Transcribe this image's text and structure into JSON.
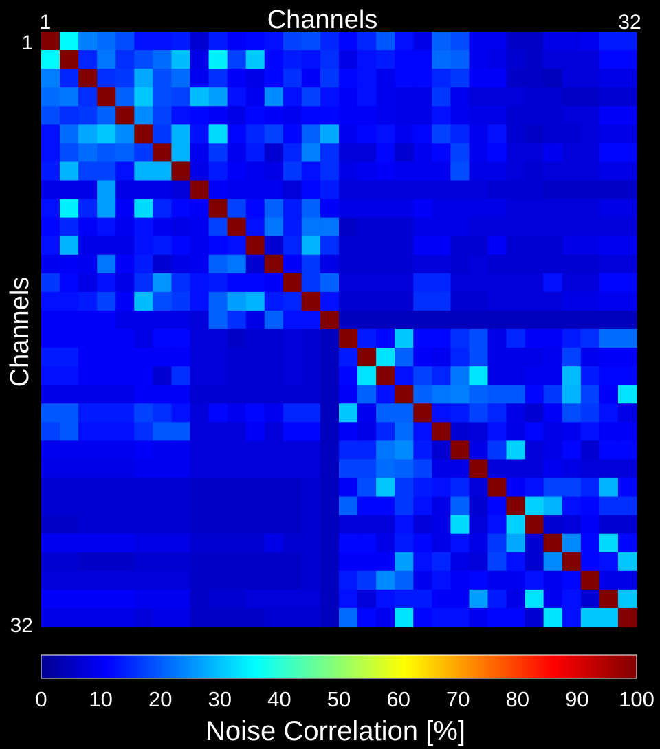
{
  "chart_data": {
    "type": "heatmap",
    "title": "Channels",
    "xlabel": "Channels",
    "ylabel": "Channels",
    "x_tick_labels": [
      "1",
      "32"
    ],
    "y_tick_labels": [
      "1",
      "32"
    ],
    "colorbar": {
      "label": "Noise Correlation [%]",
      "range": [
        0,
        100
      ],
      "ticks": [
        "0",
        "10",
        "20",
        "30",
        "40",
        "50",
        "60",
        "70",
        "80",
        "90",
        "100"
      ],
      "colormap": "jet"
    },
    "n_channels": 32,
    "values": [
      [
        100,
        37,
        25,
        23,
        20,
        14,
        14,
        15,
        8,
        15,
        12,
        13,
        14,
        19,
        20,
        16,
        13,
        16,
        21,
        14,
        10,
        22,
        20,
        11,
        11,
        7,
        7,
        10,
        10,
        11,
        15,
        15
      ],
      [
        37,
        100,
        16,
        24,
        17,
        20,
        23,
        31,
        10,
        36,
        19,
        32,
        13,
        15,
        14,
        17,
        10,
        14,
        15,
        13,
        13,
        23,
        22,
        11,
        10,
        8,
        7,
        9,
        9,
        9,
        13,
        13
      ],
      [
        25,
        16,
        100,
        17,
        18,
        29,
        20,
        23,
        11,
        17,
        12,
        10,
        13,
        17,
        12,
        18,
        13,
        14,
        11,
        13,
        13,
        16,
        18,
        12,
        12,
        7,
        7,
        6,
        9,
        9,
        10,
        10
      ],
      [
        23,
        24,
        17,
        100,
        22,
        32,
        20,
        19,
        31,
        28,
        14,
        11,
        26,
        14,
        19,
        14,
        12,
        14,
        11,
        10,
        10,
        18,
        11,
        9,
        9,
        9,
        8,
        8,
        7,
        7,
        8,
        8
      ],
      [
        20,
        17,
        18,
        22,
        100,
        26,
        19,
        14,
        13,
        12,
        10,
        13,
        12,
        11,
        13,
        13,
        12,
        12,
        11,
        10,
        10,
        14,
        11,
        10,
        10,
        8,
        8,
        8,
        9,
        9,
        12,
        12
      ],
      [
        14,
        23,
        29,
        32,
        26,
        100,
        18,
        30,
        14,
        34,
        13,
        16,
        19,
        13,
        22,
        29,
        11,
        13,
        14,
        11,
        13,
        19,
        16,
        11,
        14,
        8,
        7,
        8,
        8,
        9,
        10,
        10
      ],
      [
        14,
        20,
        23,
        21,
        22,
        18,
        100,
        30,
        11,
        18,
        11,
        15,
        8,
        16,
        25,
        17,
        9,
        9,
        13,
        8,
        11,
        13,
        19,
        11,
        13,
        9,
        9,
        11,
        9,
        9,
        13,
        13
      ],
      [
        15,
        30,
        19,
        19,
        14,
        30,
        30,
        100,
        10,
        15,
        12,
        11,
        10,
        18,
        14,
        17,
        10,
        11,
        12,
        11,
        11,
        11,
        20,
        10,
        10,
        9,
        8,
        9,
        9,
        9,
        10,
        10
      ],
      [
        10,
        10,
        10,
        28,
        10,
        10,
        10,
        9,
        100,
        12,
        11,
        11,
        11,
        9,
        13,
        15,
        9,
        9,
        9,
        9,
        9,
        9,
        9,
        9,
        8,
        8,
        8,
        7,
        7,
        7,
        7,
        7
      ],
      [
        14,
        36,
        16,
        28,
        12,
        34,
        16,
        13,
        12,
        100,
        19,
        13,
        22,
        15,
        22,
        12,
        10,
        10,
        10,
        10,
        12,
        10,
        10,
        10,
        10,
        9,
        9,
        9,
        9,
        9,
        10,
        10
      ],
      [
        13,
        16,
        12,
        14,
        11,
        14,
        11,
        10,
        11,
        19,
        100,
        14,
        24,
        15,
        24,
        24,
        7,
        8,
        8,
        8,
        10,
        10,
        10,
        9,
        9,
        9,
        9,
        9,
        9,
        9,
        9,
        9
      ],
      [
        14,
        30,
        10,
        10,
        10,
        14,
        15,
        13,
        11,
        13,
        14,
        100,
        8,
        16,
        30,
        17,
        8,
        8,
        8,
        8,
        12,
        12,
        8,
        8,
        12,
        8,
        8,
        8,
        10,
        10,
        11,
        11
      ],
      [
        11,
        12,
        11,
        24,
        12,
        15,
        8,
        10,
        11,
        22,
        24,
        8,
        100,
        12,
        18,
        10,
        8,
        8,
        8,
        8,
        9,
        9,
        8,
        9,
        8,
        8,
        8,
        8,
        8,
        8,
        9,
        9
      ],
      [
        18,
        13,
        10,
        14,
        10,
        17,
        27,
        17,
        14,
        15,
        13,
        13,
        12,
        100,
        18,
        22,
        9,
        9,
        9,
        9,
        16,
        16,
        9,
        9,
        9,
        9,
        9,
        14,
        9,
        9,
        13,
        13
      ],
      [
        14,
        14,
        15,
        19,
        12,
        31,
        20,
        18,
        14,
        22,
        28,
        30,
        15,
        16,
        100,
        14,
        8,
        8,
        8,
        8,
        17,
        17,
        8,
        8,
        9,
        9,
        9,
        9,
        10,
        10,
        11,
        11
      ],
      [
        12,
        12,
        12,
        12,
        10,
        10,
        10,
        10,
        9,
        22,
        17,
        10,
        22,
        14,
        14,
        100,
        6,
        6,
        6,
        6,
        6,
        6,
        6,
        6,
        6,
        6,
        6,
        6,
        6,
        6,
        6,
        6
      ],
      [
        12,
        12,
        12,
        12,
        12,
        10,
        13,
        13,
        9,
        9,
        7,
        8,
        8,
        9,
        8,
        6,
        100,
        15,
        13,
        32,
        13,
        13,
        17,
        20,
        10,
        16,
        12,
        12,
        15,
        17,
        23,
        23
      ],
      [
        15,
        15,
        12,
        12,
        12,
        12,
        12,
        12,
        9,
        9,
        8,
        8,
        8,
        9,
        8,
        6,
        15,
        100,
        35,
        22,
        12,
        11,
        16,
        20,
        10,
        10,
        10,
        11,
        19,
        11,
        12,
        12
      ],
      [
        14,
        14,
        12,
        12,
        12,
        12,
        8,
        17,
        9,
        9,
        8,
        8,
        8,
        9,
        8,
        6,
        13,
        35,
        100,
        14,
        19,
        16,
        24,
        35,
        10,
        10,
        11,
        11,
        31,
        15,
        13,
        13
      ],
      [
        10,
        10,
        10,
        10,
        10,
        12,
        12,
        12,
        8,
        8,
        8,
        8,
        8,
        8,
        8,
        6,
        12,
        22,
        14,
        100,
        22,
        24,
        25,
        22,
        21,
        21,
        13,
        18,
        30,
        19,
        12,
        35
      ],
      [
        21,
        21,
        15,
        15,
        15,
        19,
        17,
        14,
        9,
        13,
        11,
        13,
        11,
        16,
        16,
        6,
        32,
        11,
        22,
        22,
        100,
        14,
        15,
        19,
        16,
        10,
        8,
        12,
        20,
        18,
        14,
        10
      ],
      [
        19,
        21,
        14,
        14,
        14,
        17,
        21,
        21,
        9,
        9,
        9,
        12,
        9,
        13,
        13,
        6,
        12,
        10,
        16,
        23,
        14,
        100,
        8,
        9,
        14,
        10,
        13,
        10,
        11,
        14,
        12,
        12
      ],
      [
        11,
        11,
        11,
        11,
        11,
        12,
        11,
        11,
        9,
        9,
        9,
        9,
        9,
        9,
        9,
        6,
        16,
        16,
        24,
        26,
        15,
        8,
        100,
        10,
        18,
        33,
        9,
        10,
        13,
        8,
        13,
        13
      ],
      [
        10,
        10,
        10,
        10,
        10,
        11,
        11,
        11,
        9,
        9,
        9,
        9,
        9,
        9,
        9,
        6,
        19,
        19,
        23,
        22,
        19,
        10,
        10,
        100,
        9,
        9,
        9,
        11,
        10,
        9,
        9,
        9
      ],
      [
        8,
        8,
        8,
        8,
        8,
        8,
        8,
        8,
        7,
        7,
        7,
        7,
        7,
        7,
        8,
        6,
        12,
        20,
        32,
        18,
        15,
        14,
        16,
        9,
        100,
        12,
        14,
        19,
        19,
        16,
        30,
        13
      ],
      [
        8,
        8,
        8,
        8,
        8,
        8,
        8,
        8,
        7,
        7,
        7,
        7,
        7,
        7,
        8,
        6,
        22,
        13,
        13,
        18,
        14,
        10,
        22,
        8,
        13,
        100,
        33,
        30,
        14,
        13,
        17,
        17
      ],
      [
        7,
        7,
        8,
        8,
        8,
        8,
        8,
        8,
        7,
        7,
        7,
        7,
        7,
        7,
        8,
        6,
        9,
        9,
        9,
        14,
        9,
        10,
        34,
        9,
        14,
        33,
        100,
        8,
        9,
        12,
        8,
        8
      ],
      [
        11,
        11,
        11,
        11,
        11,
        10,
        10,
        10,
        8,
        8,
        8,
        8,
        10,
        8,
        8,
        6,
        13,
        13,
        10,
        15,
        13,
        10,
        14,
        10,
        18,
        29,
        8,
        100,
        26,
        13,
        34,
        13
      ],
      [
        8,
        8,
        7,
        7,
        7,
        8,
        8,
        8,
        7,
        7,
        7,
        7,
        7,
        7,
        8,
        6,
        12,
        12,
        12,
        28,
        14,
        16,
        10,
        9,
        19,
        14,
        8,
        26,
        100,
        13,
        14,
        32
      ],
      [
        9,
        9,
        9,
        9,
        9,
        9,
        9,
        9,
        7,
        7,
        7,
        7,
        7,
        7,
        8,
        6,
        15,
        18,
        26,
        22,
        11,
        14,
        12,
        13,
        11,
        11,
        14,
        11,
        13,
        100,
        10,
        10
      ],
      [
        12,
        12,
        12,
        12,
        12,
        11,
        11,
        11,
        7,
        8,
        8,
        9,
        9,
        9,
        9,
        6,
        14,
        9,
        14,
        15,
        15,
        12,
        12,
        28,
        15,
        10,
        35,
        11,
        14,
        8,
        100,
        32
      ],
      [
        10,
        10,
        10,
        10,
        10,
        9,
        10,
        10,
        7,
        7,
        7,
        7,
        8,
        8,
        8,
        6,
        23,
        13,
        11,
        35,
        13,
        14,
        14,
        11,
        13,
        13,
        8,
        35,
        14,
        32,
        32,
        100
      ]
    ]
  }
}
